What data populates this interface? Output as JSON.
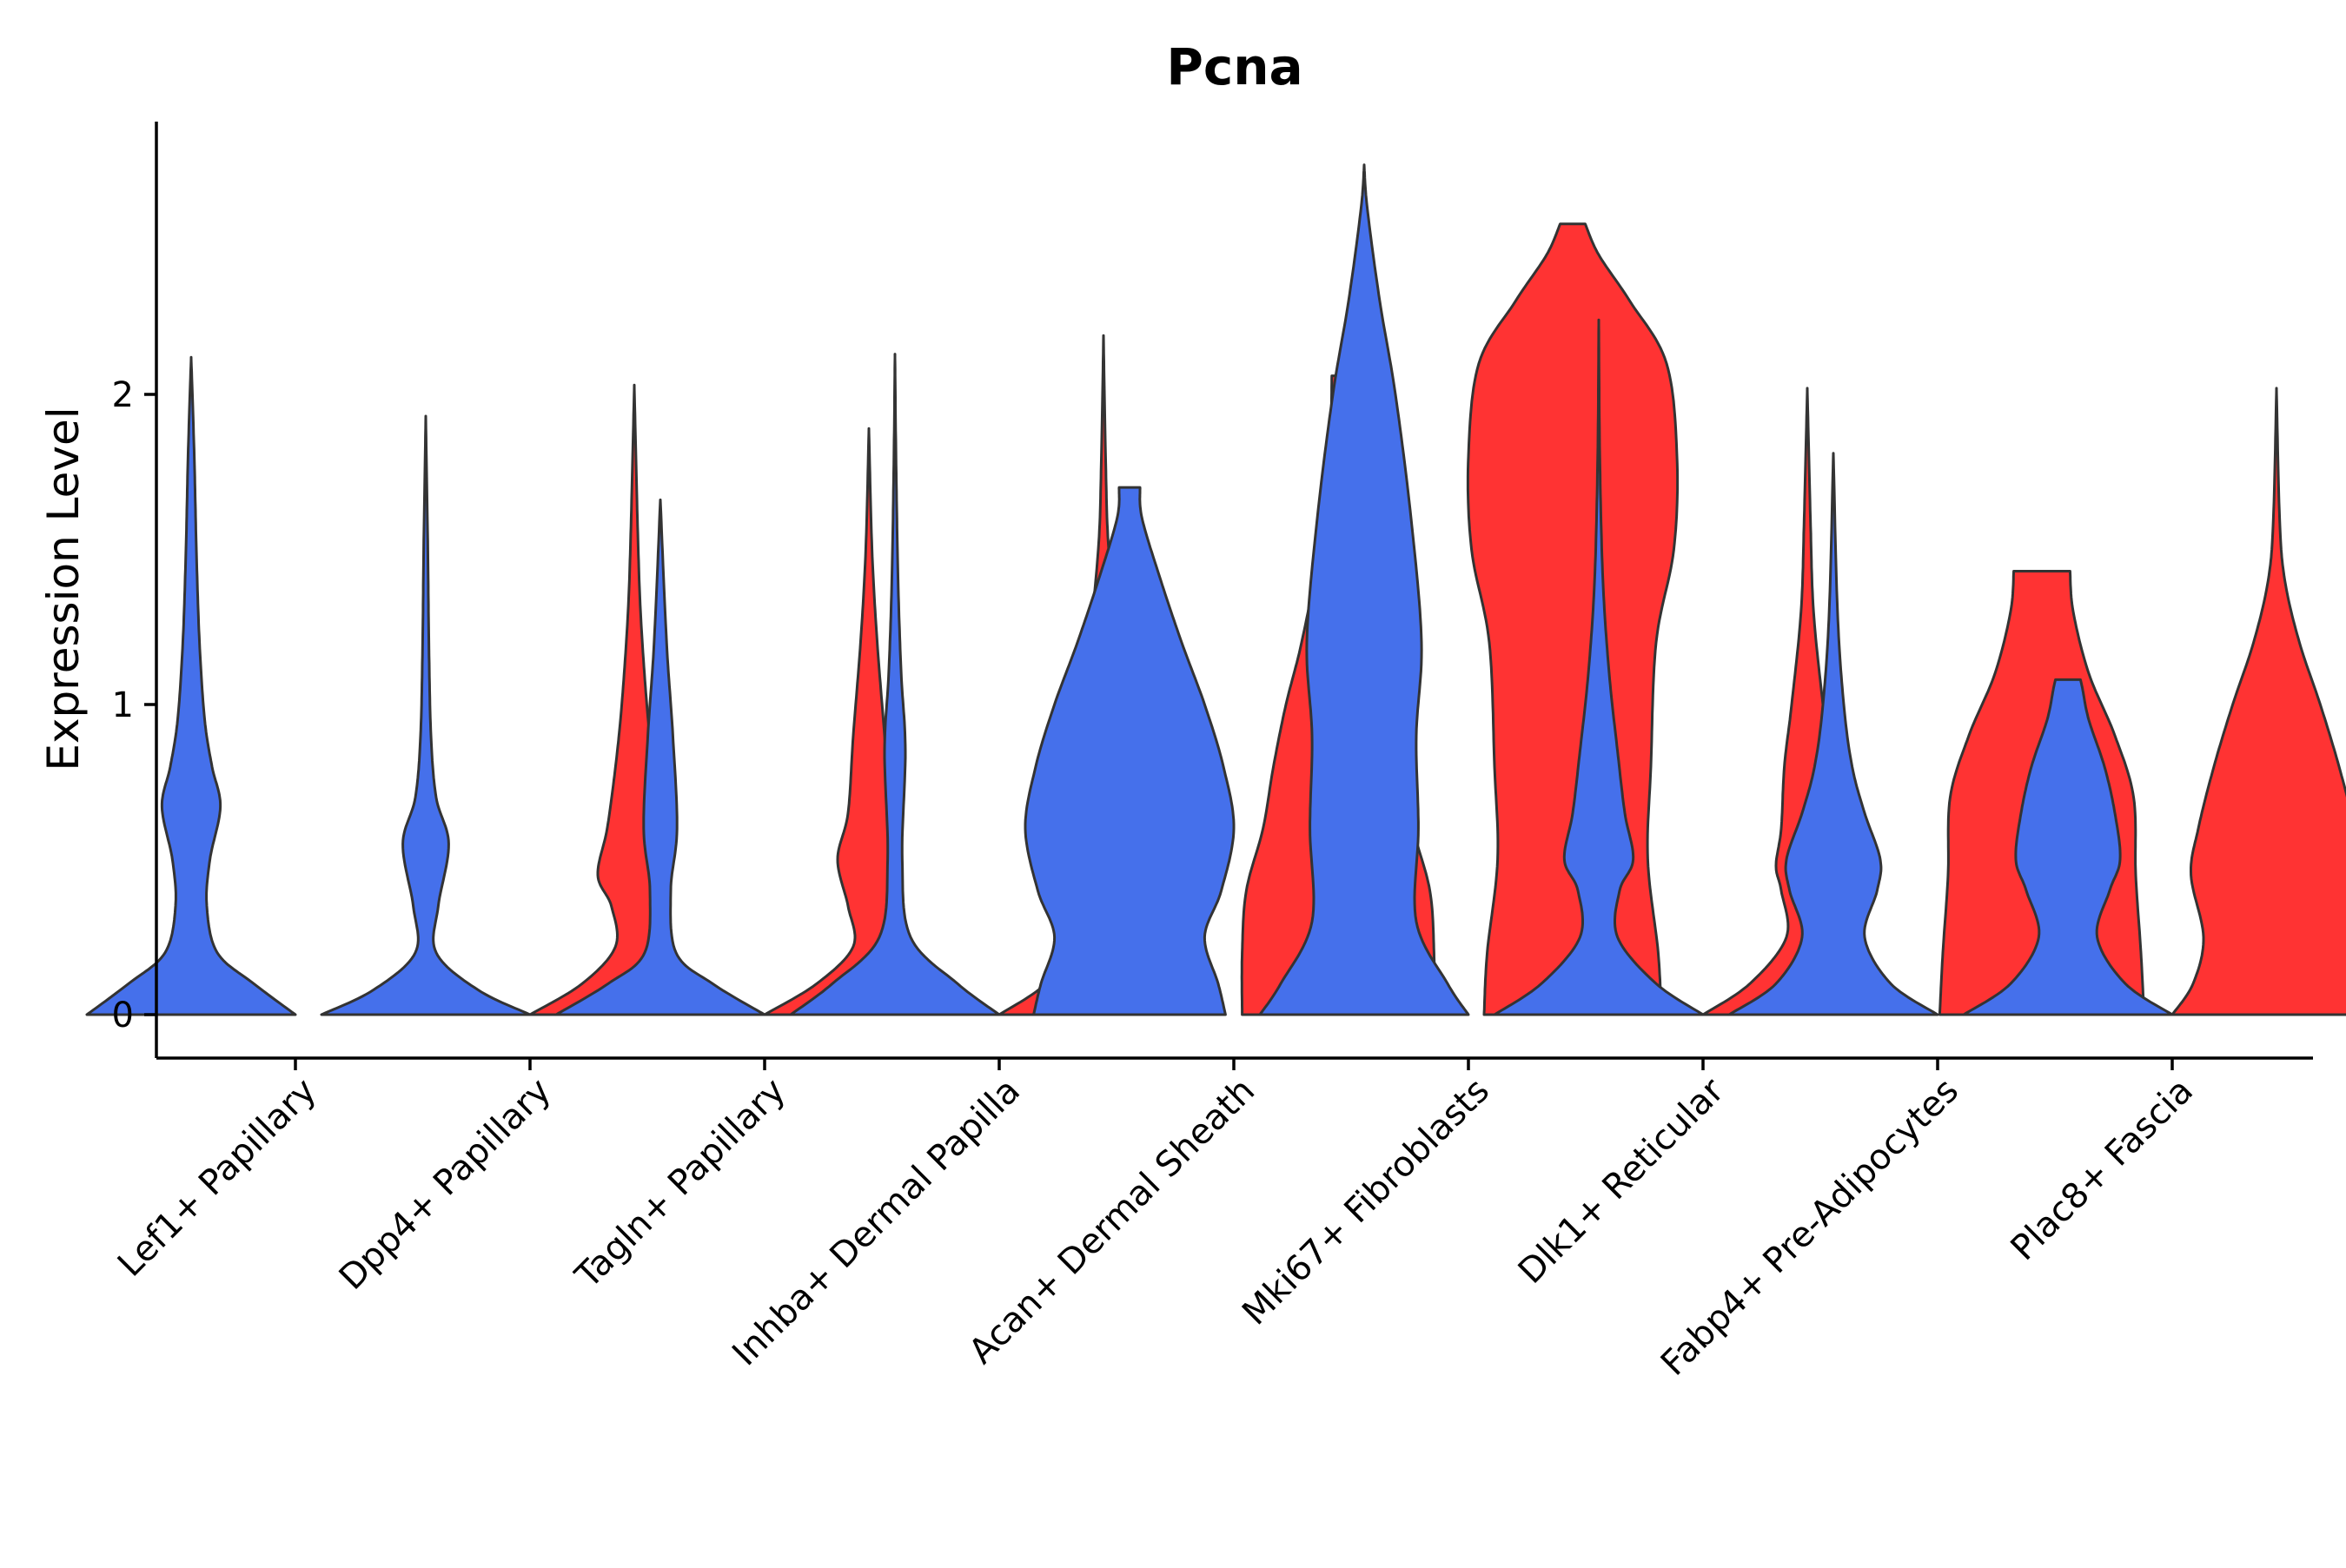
{
  "chart_data": {
    "type": "violin",
    "title": "Pcna",
    "xlabel": "",
    "ylabel": "Expression Level",
    "yticks": [
      0,
      1,
      2
    ],
    "ylim": [
      -0.14,
      2.9
    ],
    "grid": false,
    "legend": "none",
    "categories": [
      "Lef1+ Papillary",
      "Dpp4+ Papillary",
      "Tagln+ Papillary",
      "Inhba+ Dermal Papilla",
      "Acan+ Dermal Sheath",
      "Mki67+ Fibroblasts",
      "Dlk1+ Reticular",
      "Fabp4+ Pre-Adipocytes",
      "Plac8+ Fascia"
    ],
    "group_colors": [
      "#4570EB",
      "#FF3333"
    ],
    "violins": [
      {
        "category": 0,
        "group": 0,
        "ymax": 2.12,
        "profile": [
          [
            0,
            1.0
          ],
          [
            0.1,
            0.6
          ],
          [
            0.2,
            0.25
          ],
          [
            0.35,
            0.15
          ],
          [
            0.5,
            0.18
          ],
          [
            0.67,
            0.28
          ],
          [
            0.8,
            0.2
          ],
          [
            0.95,
            0.13
          ],
          [
            1.2,
            0.08
          ],
          [
            1.5,
            0.05
          ],
          [
            1.8,
            0.03
          ],
          [
            2.12,
            0.0
          ]
        ]
      },
      {
        "category": 1,
        "group": 0,
        "ymax": 1.93,
        "profile": [
          [
            0,
            1.0
          ],
          [
            0.08,
            0.5
          ],
          [
            0.2,
            0.1
          ],
          [
            0.35,
            0.12
          ],
          [
            0.55,
            0.22
          ],
          [
            0.7,
            0.1
          ],
          [
            0.9,
            0.05
          ],
          [
            1.2,
            0.03
          ],
          [
            1.5,
            0.02
          ],
          [
            1.93,
            0.0
          ]
        ]
      },
      {
        "category": 1,
        "group": 1,
        "ymax": 2.03,
        "profile": [
          [
            0,
            1.0
          ],
          [
            0.1,
            0.5
          ],
          [
            0.22,
            0.18
          ],
          [
            0.35,
            0.22
          ],
          [
            0.45,
            0.35
          ],
          [
            0.6,
            0.26
          ],
          [
            0.8,
            0.18
          ],
          [
            1.0,
            0.12
          ],
          [
            1.3,
            0.06
          ],
          [
            1.6,
            0.03
          ],
          [
            2.03,
            0.0
          ]
        ]
      },
      {
        "category": 2,
        "group": 0,
        "ymax": 1.66,
        "profile": [
          [
            0,
            1.0
          ],
          [
            0.1,
            0.5
          ],
          [
            0.2,
            0.15
          ],
          [
            0.4,
            0.1
          ],
          [
            0.6,
            0.16
          ],
          [
            0.9,
            0.12
          ],
          [
            1.2,
            0.06
          ],
          [
            1.66,
            0.0
          ]
        ]
      },
      {
        "category": 2,
        "group": 1,
        "ymax": 1.89,
        "profile": [
          [
            0,
            1.0
          ],
          [
            0.1,
            0.5
          ],
          [
            0.22,
            0.15
          ],
          [
            0.35,
            0.2
          ],
          [
            0.5,
            0.3
          ],
          [
            0.65,
            0.2
          ],
          [
            0.9,
            0.15
          ],
          [
            1.2,
            0.08
          ],
          [
            1.5,
            0.03
          ],
          [
            1.89,
            0.0
          ]
        ]
      },
      {
        "category": 3,
        "group": 0,
        "ymax": 2.13,
        "profile": [
          [
            0,
            1.0
          ],
          [
            0.1,
            0.6
          ],
          [
            0.25,
            0.15
          ],
          [
            0.5,
            0.07
          ],
          [
            0.85,
            0.1
          ],
          [
            1.1,
            0.06
          ],
          [
            1.4,
            0.03
          ],
          [
            1.8,
            0.01
          ],
          [
            2.13,
            0.0
          ]
        ]
      },
      {
        "category": 3,
        "group": 1,
        "ymax": 2.19,
        "profile": [
          [
            0,
            1.0
          ],
          [
            0.1,
            0.55
          ],
          [
            0.25,
            0.2
          ],
          [
            0.45,
            0.15
          ],
          [
            0.7,
            0.32
          ],
          [
            0.9,
            0.35
          ],
          [
            1.2,
            0.15
          ],
          [
            1.5,
            0.05
          ],
          [
            1.8,
            0.02
          ],
          [
            2.19,
            0.0
          ]
        ]
      },
      {
        "category": 4,
        "group": 0,
        "ymax": 1.7,
        "profile": [
          [
            0,
            0.92
          ],
          [
            0.1,
            0.85
          ],
          [
            0.25,
            0.72
          ],
          [
            0.4,
            0.88
          ],
          [
            0.6,
            1.0
          ],
          [
            0.8,
            0.9
          ],
          [
            1.0,
            0.72
          ],
          [
            1.2,
            0.5
          ],
          [
            1.4,
            0.3
          ],
          [
            1.6,
            0.12
          ],
          [
            1.7,
            0.1
          ]
        ]
      },
      {
        "category": 4,
        "group": 1,
        "ymax": 2.06,
        "profile": [
          [
            0,
            0.92
          ],
          [
            0.2,
            0.92
          ],
          [
            0.4,
            0.88
          ],
          [
            0.6,
            0.72
          ],
          [
            0.8,
            0.62
          ],
          [
            1.0,
            0.5
          ],
          [
            1.2,
            0.35
          ],
          [
            1.5,
            0.18
          ],
          [
            1.8,
            0.08
          ],
          [
            2.06,
            0.06
          ]
        ]
      },
      {
        "category": 5,
        "group": 0,
        "ymax": 2.74,
        "profile": [
          [
            0,
            1.0
          ],
          [
            0.1,
            0.8
          ],
          [
            0.3,
            0.5
          ],
          [
            0.6,
            0.52
          ],
          [
            0.9,
            0.5
          ],
          [
            1.2,
            0.55
          ],
          [
            1.6,
            0.45
          ],
          [
            2.0,
            0.3
          ],
          [
            2.3,
            0.15
          ],
          [
            2.6,
            0.03
          ],
          [
            2.74,
            0.0
          ]
        ]
      },
      {
        "category": 5,
        "group": 1,
        "ymax": 2.55,
        "profile": [
          [
            0,
            0.85
          ],
          [
            0.2,
            0.82
          ],
          [
            0.5,
            0.72
          ],
          [
            0.8,
            0.75
          ],
          [
            1.2,
            0.8
          ],
          [
            1.5,
            0.97
          ],
          [
            1.8,
            1.0
          ],
          [
            2.1,
            0.9
          ],
          [
            2.3,
            0.55
          ],
          [
            2.45,
            0.25
          ],
          [
            2.55,
            0.12
          ]
        ]
      },
      {
        "category": 6,
        "group": 0,
        "ymax": 2.24,
        "profile": [
          [
            0,
            1.0
          ],
          [
            0.1,
            0.55
          ],
          [
            0.25,
            0.18
          ],
          [
            0.4,
            0.2
          ],
          [
            0.5,
            0.33
          ],
          [
            0.65,
            0.25
          ],
          [
            0.85,
            0.18
          ],
          [
            1.1,
            0.1
          ],
          [
            1.4,
            0.04
          ],
          [
            1.8,
            0.01
          ],
          [
            2.24,
            0.0
          ]
        ]
      },
      {
        "category": 6,
        "group": 1,
        "ymax": 2.02,
        "profile": [
          [
            0,
            1.0
          ],
          [
            0.1,
            0.55
          ],
          [
            0.25,
            0.2
          ],
          [
            0.4,
            0.25
          ],
          [
            0.48,
            0.3
          ],
          [
            0.6,
            0.25
          ],
          [
            0.8,
            0.22
          ],
          [
            1.0,
            0.15
          ],
          [
            1.3,
            0.06
          ],
          [
            1.6,
            0.03
          ],
          [
            2.02,
            0.0
          ]
        ]
      },
      {
        "category": 7,
        "group": 0,
        "ymax": 1.81,
        "profile": [
          [
            0,
            1.0
          ],
          [
            0.1,
            0.55
          ],
          [
            0.25,
            0.3
          ],
          [
            0.4,
            0.42
          ],
          [
            0.5,
            0.45
          ],
          [
            0.65,
            0.3
          ],
          [
            0.8,
            0.18
          ],
          [
            1.0,
            0.1
          ],
          [
            1.3,
            0.04
          ],
          [
            1.81,
            0.0
          ]
        ]
      },
      {
        "category": 7,
        "group": 1,
        "ymax": 1.43,
        "profile": [
          [
            0,
            0.98
          ],
          [
            0.2,
            0.95
          ],
          [
            0.45,
            0.9
          ],
          [
            0.7,
            0.88
          ],
          [
            0.9,
            0.7
          ],
          [
            1.1,
            0.45
          ],
          [
            1.3,
            0.3
          ],
          [
            1.43,
            0.27
          ]
        ]
      },
      {
        "category": 8,
        "group": 0,
        "ymax": 1.08,
        "profile": [
          [
            0,
            1.0
          ],
          [
            0.1,
            0.55
          ],
          [
            0.25,
            0.28
          ],
          [
            0.4,
            0.4
          ],
          [
            0.5,
            0.5
          ],
          [
            0.65,
            0.45
          ],
          [
            0.8,
            0.35
          ],
          [
            0.95,
            0.2
          ],
          [
            1.05,
            0.14
          ],
          [
            1.08,
            0.12
          ]
        ]
      },
      {
        "category": 8,
        "group": 1,
        "ymax": 2.02,
        "profile": [
          [
            0,
            1.0
          ],
          [
            0.1,
            0.8
          ],
          [
            0.25,
            0.7
          ],
          [
            0.45,
            0.82
          ],
          [
            0.6,
            0.75
          ],
          [
            0.8,
            0.6
          ],
          [
            1.0,
            0.42
          ],
          [
            1.2,
            0.22
          ],
          [
            1.4,
            0.08
          ],
          [
            1.6,
            0.03
          ],
          [
            2.02,
            0.0
          ]
        ]
      }
    ]
  }
}
